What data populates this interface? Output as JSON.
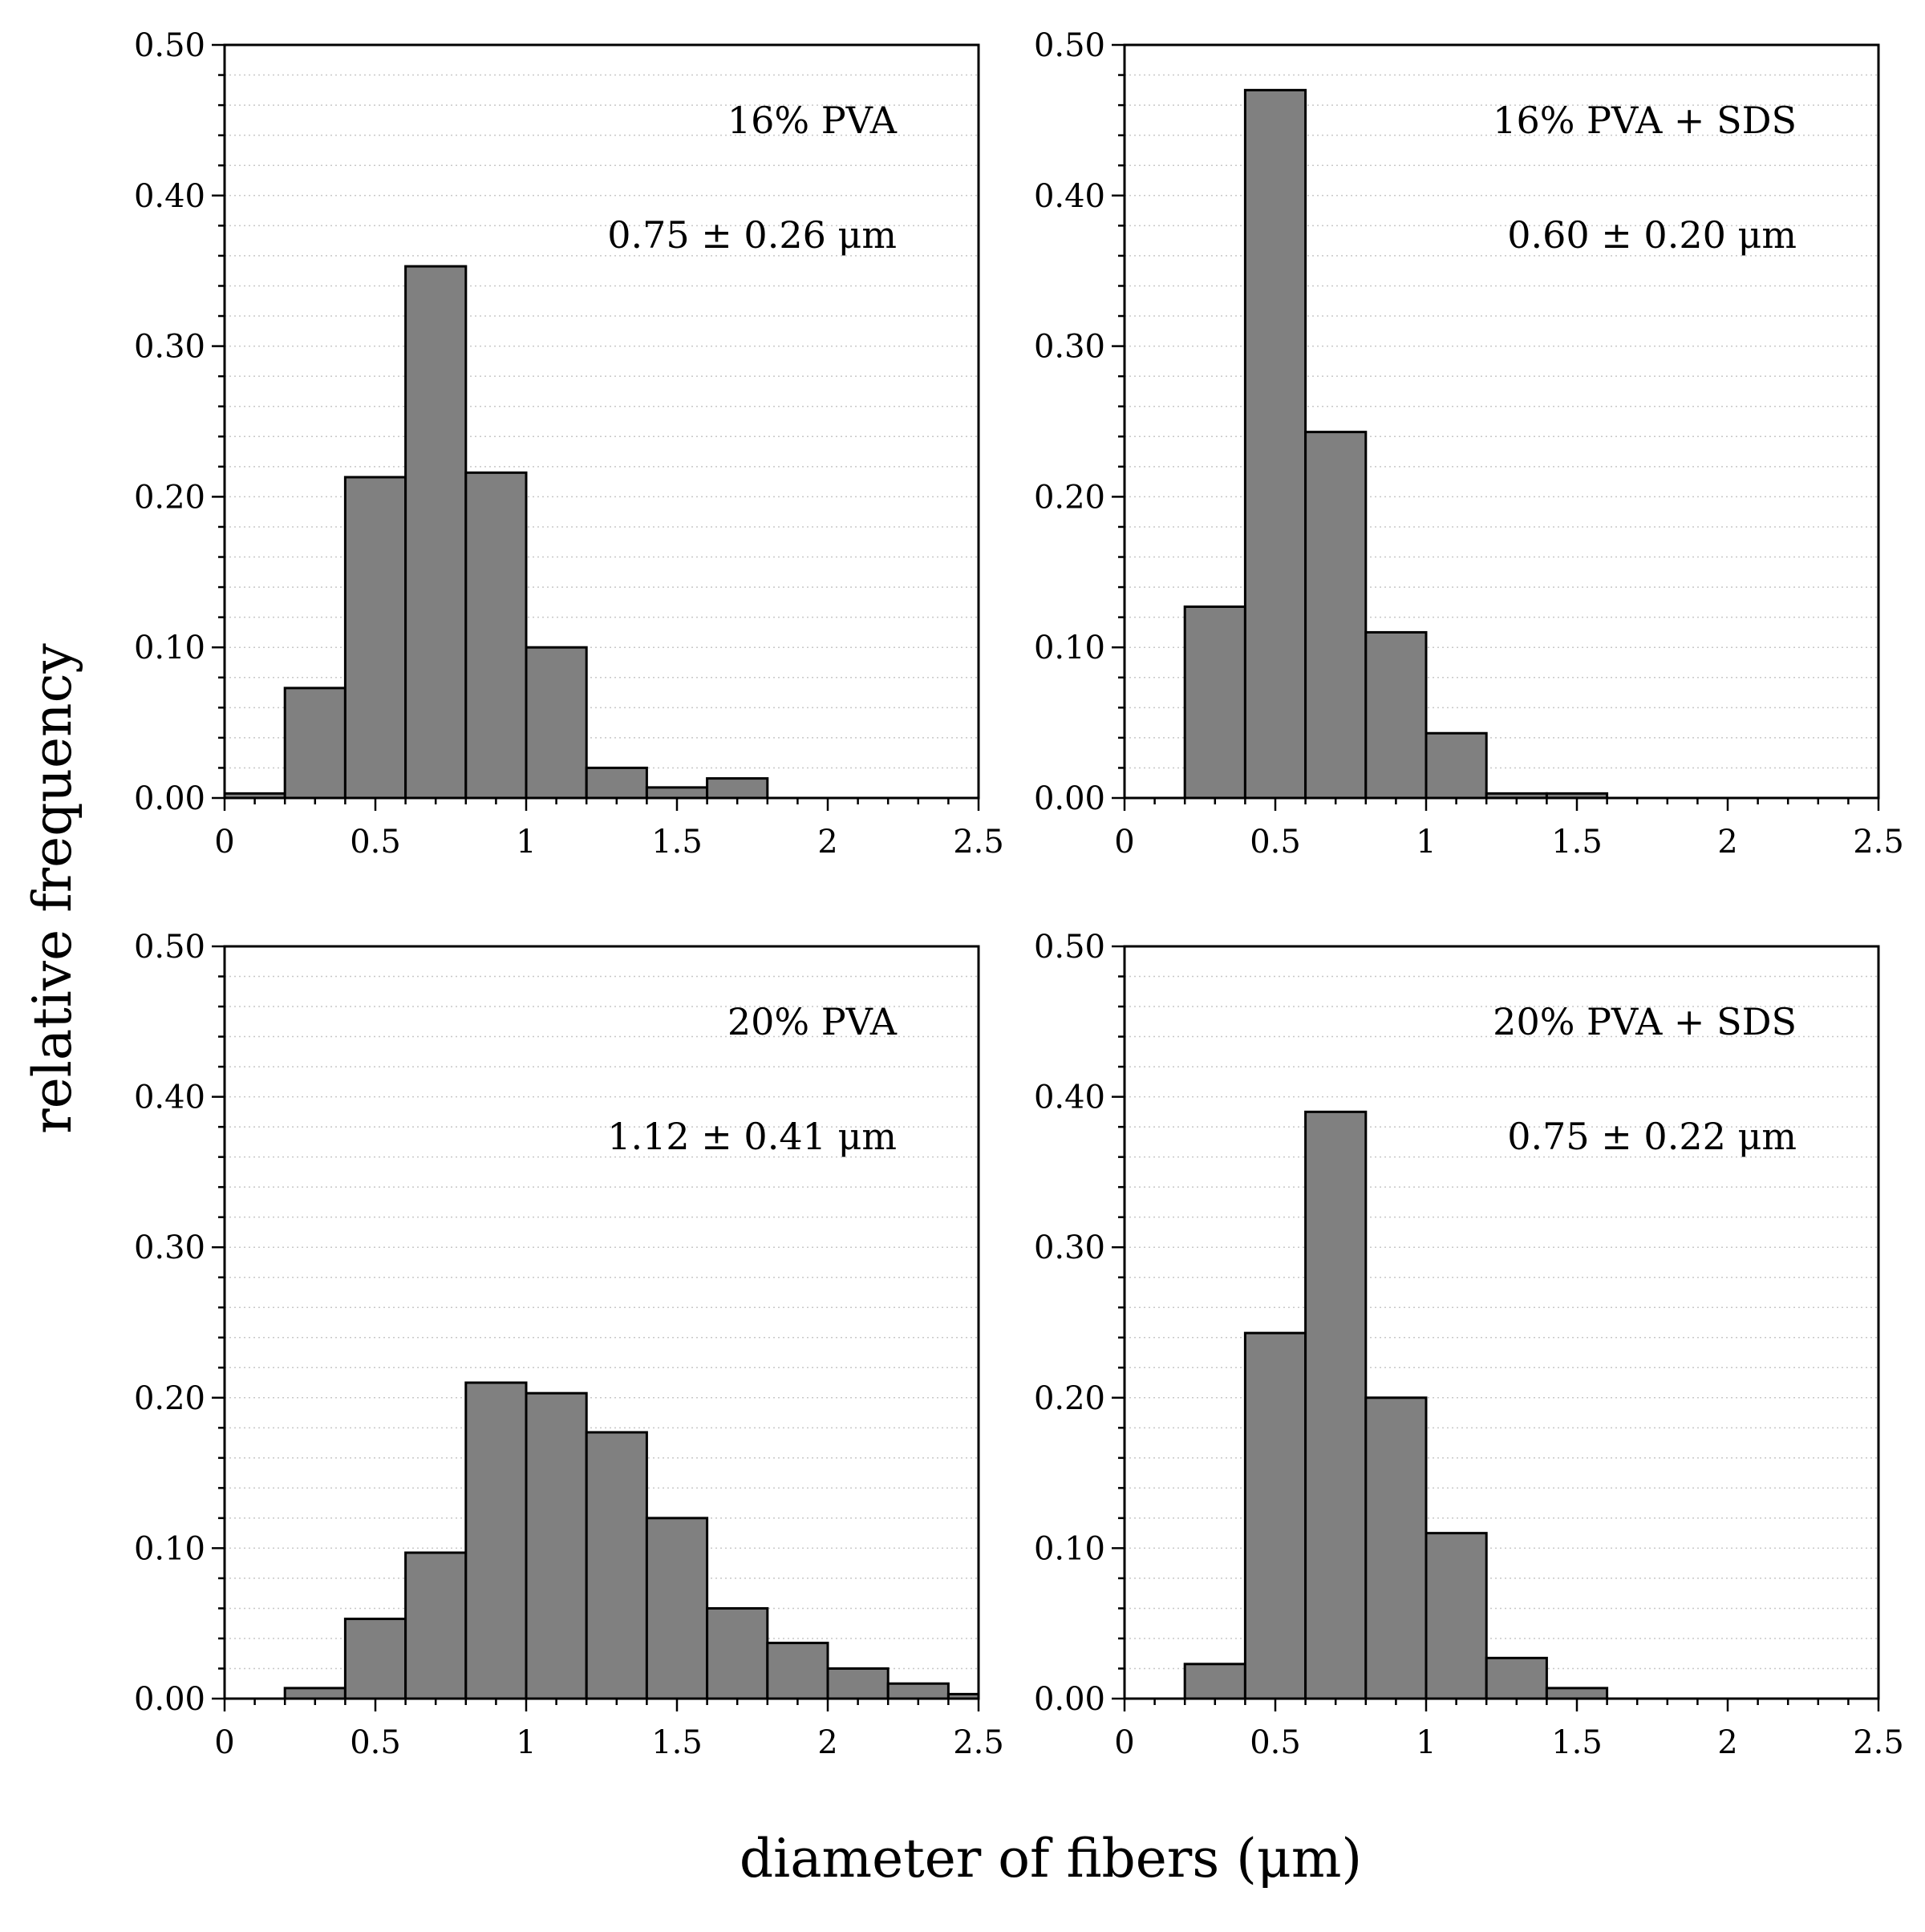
{
  "chart_data": [
    {
      "type": "bar",
      "label": "16% PVA",
      "stat": "0.75 ± 0.26 μm",
      "bin_edges": [
        0,
        0.2,
        0.4,
        0.6,
        0.8,
        1.0,
        1.2,
        1.4,
        1.6,
        1.8,
        2.0,
        2.2,
        2.4,
        2.5
      ],
      "values": [
        0.003,
        0.073,
        0.213,
        0.353,
        0.216,
        0.1,
        0.02,
        0.007,
        0.013,
        0,
        0,
        0,
        0
      ],
      "xlim": [
        0,
        2.5
      ],
      "ylim": [
        0,
        0.5
      ],
      "xticks": [
        "0",
        "0.5",
        "1",
        "1.5",
        "2",
        "2.5"
      ],
      "yticks": [
        "0.00",
        "0.10",
        "0.20",
        "0.30",
        "0.40",
        "0.50"
      ]
    },
    {
      "type": "bar",
      "label": "16% PVA + SDS",
      "stat": "0.60 ± 0.20 μm",
      "bin_edges": [
        0,
        0.2,
        0.4,
        0.6,
        0.8,
        1.0,
        1.2,
        1.4,
        1.6,
        1.8,
        2.0,
        2.2,
        2.4,
        2.5
      ],
      "values": [
        0,
        0.127,
        0.47,
        0.243,
        0.11,
        0.043,
        0.003,
        0.003,
        0,
        0,
        0,
        0,
        0
      ],
      "xlim": [
        0,
        2.5
      ],
      "ylim": [
        0,
        0.5
      ],
      "xticks": [
        "0",
        "0.5",
        "1",
        "1.5",
        "2",
        "2.5"
      ],
      "yticks": [
        "0.00",
        "0.10",
        "0.20",
        "0.30",
        "0.40",
        "0.50"
      ]
    },
    {
      "type": "bar",
      "label": "20% PVA",
      "stat": "1.12 ± 0.41 μm",
      "bin_edges": [
        0,
        0.2,
        0.4,
        0.6,
        0.8,
        1.0,
        1.2,
        1.4,
        1.6,
        1.8,
        2.0,
        2.2,
        2.4,
        2.5
      ],
      "values": [
        0,
        0.007,
        0.053,
        0.097,
        0.21,
        0.203,
        0.177,
        0.12,
        0.06,
        0.037,
        0.02,
        0.01,
        0.003
      ],
      "xlim": [
        0,
        2.5
      ],
      "ylim": [
        0,
        0.5
      ],
      "xticks": [
        "0",
        "0.5",
        "1",
        "1.5",
        "2",
        "2.5"
      ],
      "yticks": [
        "0.00",
        "0.10",
        "0.20",
        "0.30",
        "0.40",
        "0.50"
      ]
    },
    {
      "type": "bar",
      "label": "20% PVA + SDS",
      "stat": "0.75 ± 0.22 μm",
      "bin_edges": [
        0,
        0.2,
        0.4,
        0.6,
        0.8,
        1.0,
        1.2,
        1.4,
        1.6,
        1.8,
        2.0,
        2.2,
        2.4,
        2.5
      ],
      "values": [
        0,
        0.023,
        0.243,
        0.39,
        0.2,
        0.11,
        0.027,
        0.007,
        0,
        0,
        0,
        0,
        0
      ],
      "xlim": [
        0,
        2.5
      ],
      "ylim": [
        0,
        0.5
      ],
      "xticks": [
        "0",
        "0.5",
        "1",
        "1.5",
        "2",
        "2.5"
      ],
      "yticks": [
        "0.00",
        "0.10",
        "0.20",
        "0.30",
        "0.40",
        "0.50"
      ]
    }
  ],
  "ylabel": "relative frequency",
  "xlabel": "diameter of fibers (μm)",
  "colors": {
    "bar_fill": "#808080",
    "bar_stroke": "#000000",
    "grid": "#c8c8c8"
  }
}
